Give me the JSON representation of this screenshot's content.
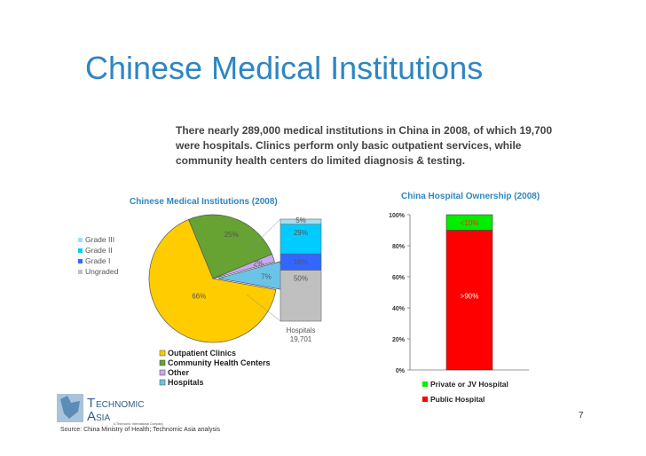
{
  "slide": {
    "title": "Chinese Medical Institutions",
    "intro": "There nearly 289,000 medical institutions in China in 2008, of which 19,700 were hospitals. Clinics perform only basic outpatient services, while community health centers do limited diagnosis & testing.",
    "page_number": "7",
    "source": "Source: China Ministry of Health; Technomic Asia analysis",
    "logo_text_1": "ECHNOMIC",
    "logo_text_2": "SIA",
    "logo_letter_1": "T",
    "logo_letter_2": "A",
    "logo_tagline": "A Technomic International Company"
  },
  "chart_data": [
    {
      "type": "pie",
      "title": "Chinese Medical Institutions (2008)",
      "slices": [
        {
          "name": "Outpatient Clinics",
          "value": 66,
          "label": "66%",
          "color": "#FFCC00"
        },
        {
          "name": "Community Health Centers",
          "value": 25,
          "label": "25%",
          "color": "#66A333"
        },
        {
          "name": "Other",
          "value": 2,
          "label": "2%",
          "color": "#C8A8F0"
        },
        {
          "name": "Hospitals",
          "value": 7,
          "label": "7%",
          "color": "#6BC4E8"
        }
      ],
      "legend": [
        "Outpatient Clinics",
        "Community Health Centers",
        "Other",
        "Hospitals"
      ]
    },
    {
      "type": "bar",
      "subtype": "stacked-100",
      "categories": [
        "Hospitals 19,701"
      ],
      "category_label_lines": [
        "Hospitals",
        "19,701"
      ],
      "series": [
        {
          "name": "Ungraded",
          "values": [
            50
          ],
          "label": "50%",
          "color": "#C0C0C0"
        },
        {
          "name": "Grade I",
          "values": [
            16
          ],
          "label": "16%",
          "color": "#3366FF"
        },
        {
          "name": "Grade II",
          "values": [
            29
          ],
          "label": "29%",
          "color": "#00CCFF"
        },
        {
          "name": "Grade III",
          "values": [
            5
          ],
          "label": "5%",
          "color": "#A6DDF2"
        }
      ],
      "legend": [
        "Grade III",
        "Grade II",
        "Grade I",
        "Ungraded"
      ]
    },
    {
      "type": "bar",
      "subtype": "stacked-100",
      "title": "China Hospital Ownership (2008)",
      "categories": [
        ""
      ],
      "series": [
        {
          "name": "Public Hospital",
          "values": [
            90
          ],
          "label": ">90%",
          "color": "#FF0000"
        },
        {
          "name": "Private or JV Hospital",
          "values": [
            10
          ],
          "label": "<10%",
          "color": "#00EE00"
        }
      ],
      "ylim": [
        0,
        100
      ],
      "yticks": [
        "0%",
        "20%",
        "40%",
        "60%",
        "80%",
        "100%"
      ],
      "legend": [
        "Private or JV Hospital",
        "Public Hospital"
      ]
    }
  ]
}
